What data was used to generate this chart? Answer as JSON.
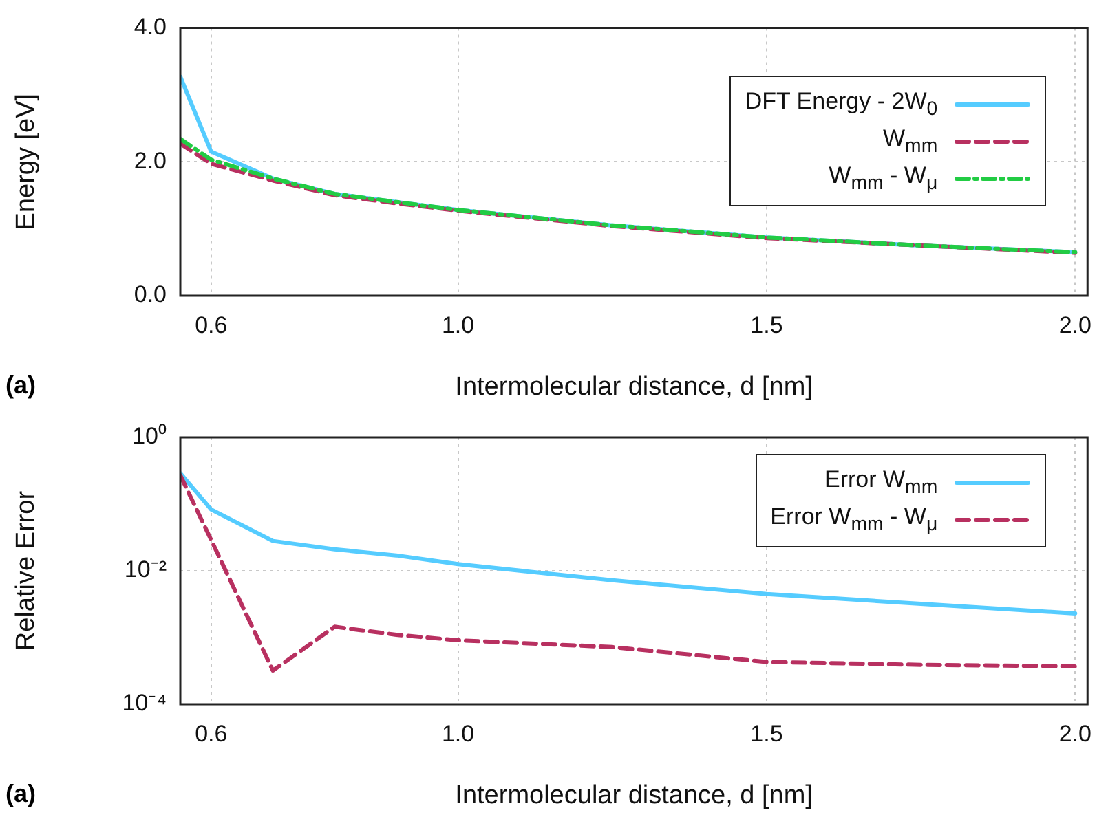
{
  "chart_data": [
    {
      "type": "line",
      "xlabel": "Intermolecular distance, d [nm]",
      "ylabel": "Energy [eV]",
      "annotations": [
        "(a)"
      ],
      "x": [
        0.55,
        0.6,
        0.7,
        0.8,
        0.9,
        1.0,
        1.25,
        1.5,
        1.75,
        2.0
      ],
      "series": [
        {
          "name": "DFT Energy - 2W$_{0}$",
          "color": "#55ccff",
          "line_style": "solid",
          "values": [
            3.27,
            2.15,
            1.75,
            1.52,
            1.4,
            1.28,
            1.05,
            0.87,
            0.75,
            0.65
          ]
        },
        {
          "name": "W$_{mm}$",
          "color": "#b83060",
          "line_style": "dashed",
          "values": [
            2.27,
            1.97,
            1.72,
            1.5,
            1.38,
            1.27,
            1.04,
            0.86,
            0.75,
            0.64
          ]
        },
        {
          "name": "W$_{mm}$ - W$_{μ}$",
          "color": "#22cc44",
          "line_style": "dashdot",
          "values": [
            2.34,
            2.03,
            1.75,
            1.52,
            1.4,
            1.28,
            1.05,
            0.87,
            0.75,
            0.65
          ]
        }
      ],
      "xlim": [
        0.55,
        2.02
      ],
      "xticks": [
        {
          "value": 0.6,
          "label": "0.6"
        },
        {
          "value": 1.0,
          "label": "1.0"
        },
        {
          "value": 1.5,
          "label": "1.5"
        },
        {
          "value": 2.0,
          "label": "2.0"
        }
      ],
      "ylim": [
        0,
        4
      ],
      "yticks": [
        {
          "value": 0,
          "label": "0.0"
        },
        {
          "value": 2,
          "label": "2.0"
        },
        {
          "value": 4,
          "label": "4.0"
        }
      ],
      "grid": true,
      "legend": "top right"
    },
    {
      "type": "line",
      "xlabel": "Intermolecular distance, d [nm]",
      "ylabel": "Relative Error",
      "annotations": [
        "(a)"
      ],
      "x": [
        0.55,
        0.6,
        0.7,
        0.8,
        0.9,
        1.0,
        1.25,
        1.5,
        1.75,
        2.0
      ],
      "series": [
        {
          "name": "Error W$_{mm}$",
          "color": "#55ccff",
          "line_style": "solid",
          "values": [
            0.29,
            0.083,
            0.028,
            0.021,
            0.017,
            0.0126,
            0.0072,
            0.0045,
            0.0032,
            0.0023
          ]
        },
        {
          "name": "Error W$_{mm}$ - W$_{μ}$",
          "color": "#b83060",
          "line_style": "dashed",
          "values": [
            0.27,
            0.029,
            0.00032,
            0.00145,
            0.0011,
            0.00091,
            0.00072,
            0.00043,
            0.00039,
            0.00037
          ]
        }
      ],
      "xlim": [
        0.55,
        2.02
      ],
      "xticks": [
        {
          "value": 0.6,
          "label": "0.6"
        },
        {
          "value": 1.0,
          "label": "1.0"
        },
        {
          "value": 1.5,
          "label": "1.5"
        },
        {
          "value": 2.0,
          "label": "2.0"
        }
      ],
      "ylim": [
        0.0001,
        1
      ],
      "yticks": [
        {
          "value": 1,
          "label": "10⁰"
        },
        {
          "value": 0.01,
          "label": "10⁻²"
        },
        {
          "value": 0.0001,
          "label": "10⁻⁴"
        }
      ],
      "log": "y",
      "grid": true,
      "legend": "top right"
    }
  ]
}
